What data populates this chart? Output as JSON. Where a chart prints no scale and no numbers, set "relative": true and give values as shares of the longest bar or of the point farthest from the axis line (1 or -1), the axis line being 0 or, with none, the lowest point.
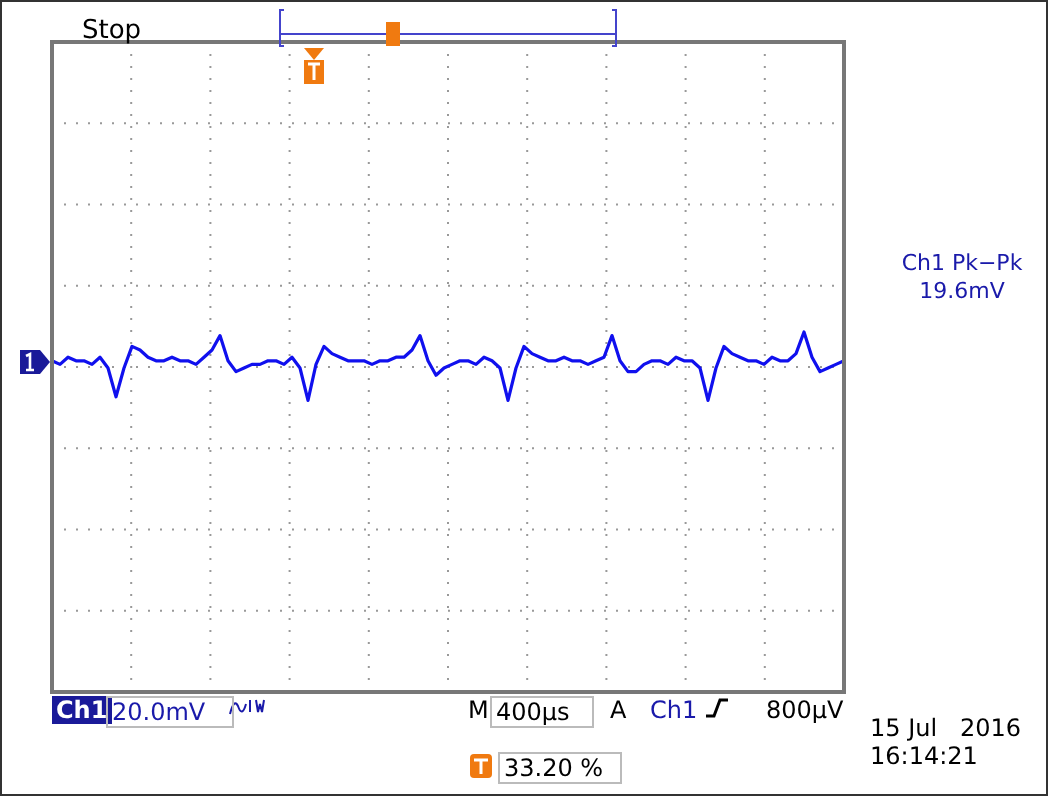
{
  "chart_data": {
    "type": "line",
    "relative": true,
    "grid": true,
    "categories": [
      null,
      null,
      null,
      null,
      null,
      null,
      null,
      null,
      null,
      null,
      null,
      null,
      null,
      null,
      null,
      null,
      null,
      null,
      null,
      null,
      null,
      null,
      null,
      null,
      null,
      null,
      null,
      null,
      null,
      null,
      null,
      null,
      null,
      null,
      null,
      null,
      null,
      null,
      null,
      null,
      null,
      null,
      null,
      null,
      null,
      null,
      null,
      null,
      null,
      null,
      null,
      null,
      null,
      null,
      null,
      null,
      null,
      null,
      null,
      null,
      null,
      null,
      null,
      null,
      null,
      null,
      null,
      null,
      null,
      null,
      null,
      null,
      null,
      null,
      null,
      null,
      null,
      null,
      null,
      null,
      null,
      null,
      null,
      null,
      null,
      null,
      null,
      null,
      null,
      null,
      null,
      null,
      null,
      null,
      null,
      null,
      null,
      null,
      null,
      null
    ],
    "series": [
      {
        "color": "#1010ee",
        "values": [
          0.92,
          0.91,
          0.93,
          0.92,
          0.92,
          0.91,
          0.93,
          0.9,
          0.82,
          0.9,
          0.96,
          0.95,
          0.93,
          0.92,
          0.92,
          0.93,
          0.92,
          0.92,
          0.91,
          0.93,
          0.95,
          0.99,
          0.92,
          0.89,
          0.9,
          0.91,
          0.91,
          0.92,
          0.92,
          0.91,
          0.93,
          0.9,
          0.81,
          0.91,
          0.96,
          0.94,
          0.93,
          0.92,
          0.92,
          0.92,
          0.91,
          0.92,
          0.92,
          0.93,
          0.93,
          0.95,
          0.99,
          0.92,
          0.88,
          0.9,
          0.91,
          0.92,
          0.92,
          0.91,
          0.93,
          0.92,
          0.9,
          0.81,
          0.9,
          0.96,
          0.94,
          0.93,
          0.92,
          0.92,
          0.93,
          0.92,
          0.92,
          0.91,
          0.92,
          0.93,
          0.99,
          0.92,
          0.89,
          0.89,
          0.91,
          0.92,
          0.92,
          0.91,
          0.93,
          0.92,
          0.92,
          0.9,
          0.81,
          0.9,
          0.96,
          0.94,
          0.93,
          0.92,
          0.92,
          0.91,
          0.93,
          0.92,
          0.92,
          0.94,
          1.0,
          0.93,
          0.89,
          0.9,
          0.91,
          0.92
        ]
      }
    ],
    "annotations": [
      "Stop",
      "Ch1 Pk−Pk",
      "19.6mV",
      "Ch1",
      "20.0mV",
      "M",
      "400µs",
      "A",
      "Ch1",
      "800µV",
      "33.20 %",
      "15 Jul   2016",
      "16:14:21"
    ]
  }
}
